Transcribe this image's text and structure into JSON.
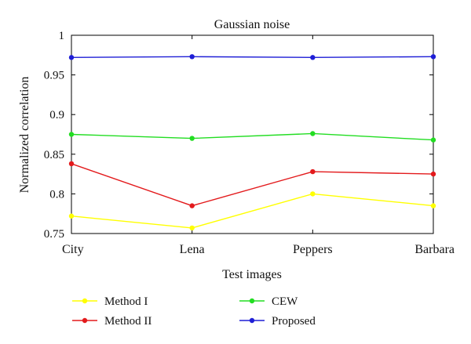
{
  "chart_data": {
    "type": "line",
    "title": "Gaussian noise",
    "xlabel": "Test images",
    "ylabel": "Normalized correlation",
    "categories": [
      "City",
      "Lena",
      "Peppers",
      "Barbara"
    ],
    "ylim": [
      0.75,
      1.0
    ],
    "yticks": [
      "0.75",
      "0.8",
      "0.85",
      "0.9",
      "0.95",
      "1"
    ],
    "grid": false,
    "legend_position": "bottom",
    "series": [
      {
        "name": "Method I",
        "color": "#ffff00",
        "values": [
          0.772,
          0.757,
          0.8,
          0.785
        ]
      },
      {
        "name": "Method II",
        "color": "#e31a1c",
        "values": [
          0.838,
          0.785,
          0.828,
          0.825
        ]
      },
      {
        "name": "CEW",
        "color": "#22dd22",
        "values": [
          0.875,
          0.87,
          0.876,
          0.868
        ]
      },
      {
        "name": "Proposed",
        "color": "#1f1fd6",
        "values": [
          0.972,
          0.973,
          0.972,
          0.973
        ]
      }
    ]
  }
}
